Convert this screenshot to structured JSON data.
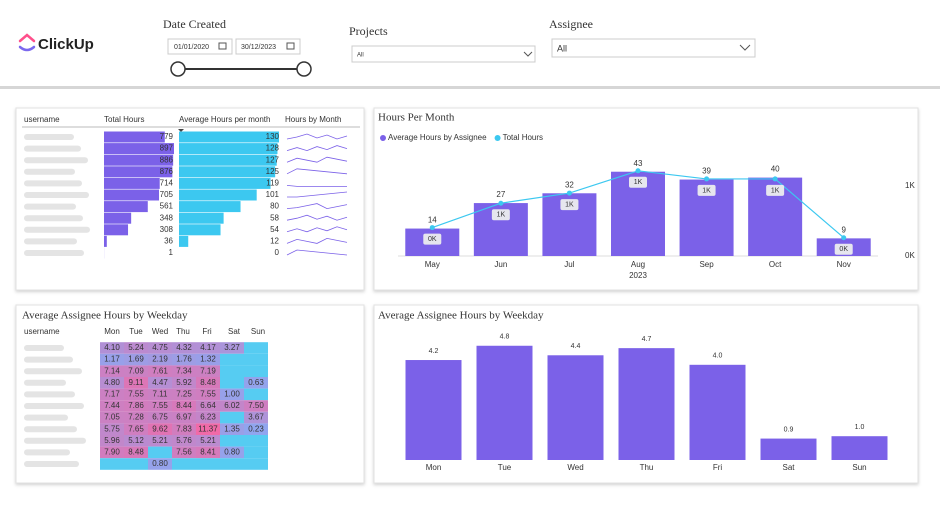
{
  "header": {
    "logo": "ClickUp",
    "date_filter": {
      "label": "Date Created",
      "start": "01/01/2020",
      "end": "30/12/2023"
    },
    "projects": {
      "label": "Projects",
      "value": "All"
    },
    "assignee": {
      "label": "Assignee",
      "value": "All"
    }
  },
  "hours_table": {
    "columns": [
      "username",
      "Total Hours",
      "Average Hours per month",
      "Hours by Month"
    ],
    "total_hours": [
      779,
      897,
      886,
      876,
      714,
      705,
      561,
      348,
      308,
      36,
      1
    ],
    "avg_hours": [
      130,
      128,
      127,
      125,
      119,
      101,
      80,
      58,
      54,
      12,
      0
    ],
    "bar_colors": [
      "#7B61E8",
      "#3CC8F0"
    ]
  },
  "weekday_table": {
    "title": "Average Assignee Hours by Weekday",
    "columns": [
      "username",
      "Mon",
      "Tue",
      "Wed",
      "Thu",
      "Fri",
      "Sat",
      "Sun"
    ],
    "rows": [
      [
        "4.10",
        "5.24",
        "4.75",
        "4.32",
        "4.17",
        "3.27",
        null
      ],
      [
        "1.17",
        "1.69",
        "2.19",
        "1.76",
        "1.32",
        null,
        null
      ],
      [
        "7.14",
        "7.09",
        "7.61",
        "7.34",
        "7.19",
        null,
        null
      ],
      [
        "4.80",
        "9.11",
        "4.47",
        "5.92",
        "8.48",
        null,
        "0.63"
      ],
      [
        "7.17",
        "7.55",
        "7.11",
        "7.25",
        "7.55",
        "1.00",
        null
      ],
      [
        "7.44",
        "7.86",
        "7.55",
        "8.44",
        "6.64",
        "6.02",
        "7.50"
      ],
      [
        "7.05",
        "7.28",
        "6.75",
        "6.97",
        "6.23",
        null,
        "3.67"
      ],
      [
        "5.75",
        "7.65",
        "9.62",
        "7.83",
        "11.37",
        "1.35",
        "0.23"
      ],
      [
        "5.96",
        "5.12",
        "5.21",
        "5.76",
        "5.21",
        null,
        null
      ],
      [
        "7.90",
        "8.48",
        null,
        "7.56",
        "8.41",
        "0.80",
        null
      ],
      [
        null,
        null,
        "0.80",
        null,
        null,
        null,
        null
      ]
    ]
  },
  "chart_data": [
    {
      "type": "combo",
      "title": "Hours Per Month",
      "categories": [
        "May",
        "Jun",
        "Jul",
        "Aug",
        "Sep",
        "Oct",
        "Nov"
      ],
      "xlabel": "2023",
      "series": [
        {
          "name": "Average Hours by Assignee",
          "color": "#7B61E8",
          "type": "bar",
          "values": [
            14,
            27,
            32,
            43,
            39,
            40,
            9
          ]
        },
        {
          "name": "Total Hours",
          "color": "#3CC8F0",
          "type": "line",
          "axis": "y2",
          "values": [
            406,
            754,
            899,
            1217,
            1101,
            1101,
            261
          ],
          "value_labels": [
            "0K",
            "1K",
            "1K",
            "1K",
            "1K",
            "1K",
            "0K"
          ]
        }
      ],
      "ylim": [
        0,
        50
      ],
      "y2lim": [
        0,
        1400
      ],
      "y2ticks": [
        {
          "value": 0,
          "label": "0K"
        },
        {
          "value": 1000,
          "label": "1K"
        }
      ]
    },
    {
      "type": "bar",
      "title": "Average Assignee Hours by Weekday",
      "categories": [
        "Mon",
        "Tue",
        "Wed",
        "Thu",
        "Fri",
        "Sat",
        "Sun"
      ],
      "values": [
        4.2,
        4.8,
        4.4,
        4.7,
        4.0,
        0.9,
        1.0
      ],
      "value_labels": [
        "4.2",
        "4.8",
        "4.4",
        "4.7",
        "4.0",
        "0.9",
        "1.0"
      ],
      "color": "#7B61E8",
      "ylim": [
        0,
        5
      ]
    }
  ]
}
